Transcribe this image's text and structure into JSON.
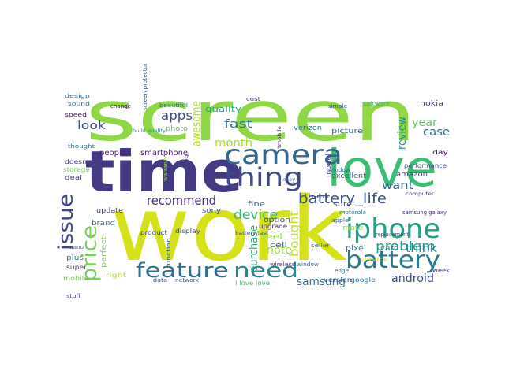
{
  "word_cloud": {
    "words": [
      {
        "text": "screen",
        "color": "#8fd744"
      },
      {
        "text": "work",
        "color": "#d5e21a"
      },
      {
        "text": "time",
        "color": "#443983"
      },
      {
        "text": "love",
        "color": "#3dbc74"
      },
      {
        "text": "camera",
        "color": "#31688e"
      },
      {
        "text": "iphone",
        "color": "#20a386"
      },
      {
        "text": "thing",
        "color": "#3f4889"
      },
      {
        "text": "battery",
        "color": "#2a788e"
      },
      {
        "text": "feature",
        "color": "#2d708e"
      },
      {
        "text": "need",
        "color": "#26828e"
      },
      {
        "text": "issue",
        "color": "#404688"
      },
      {
        "text": "price",
        "color": "#75d054"
      },
      {
        "text": "battery_life",
        "color": "#3b528b"
      },
      {
        "text": "recommend",
        "color": "#472d7b"
      },
      {
        "text": "apps",
        "color": "#3f4788"
      },
      {
        "text": "fast",
        "color": "#2c728e"
      },
      {
        "text": "month",
        "color": "#a8db34"
      },
      {
        "text": "device",
        "color": "#35b779"
      },
      {
        "text": "awesome",
        "color": "#b8de29"
      },
      {
        "text": "problem",
        "color": "#1f9e89"
      },
      {
        "text": "android",
        "color": "#3e4a89"
      },
      {
        "text": "review",
        "color": "#21918c"
      },
      {
        "text": "year",
        "color": "#5ec962"
      },
      {
        "text": "want",
        "color": "#31688e"
      },
      {
        "text": "case",
        "color": "#2e6e8e"
      },
      {
        "text": "think",
        "color": "#25848e"
      },
      {
        "text": "bought",
        "color": "#c8e020"
      },
      {
        "text": "look",
        "color": "#3b528b"
      },
      {
        "text": "samsung",
        "color": "#2c728e"
      },
      {
        "text": "purchase",
        "color": "#22a884"
      },
      {
        "text": "note",
        "color": "#a5db36"
      },
      {
        "text": "quality",
        "color": "#22a785"
      },
      {
        "text": "people",
        "color": "#482475"
      },
      {
        "text": "smartphone",
        "color": "#481f70"
      },
      {
        "text": "update",
        "color": "#433e85"
      },
      {
        "text": "brand",
        "color": "#2d708e"
      },
      {
        "text": "perfect",
        "color": "#86d549"
      },
      {
        "text": "excellent",
        "color": "#34618d"
      },
      {
        "text": "amazon",
        "color": "#404588"
      },
      {
        "text": "nokia",
        "color": "#3e4989"
      },
      {
        "text": "picture",
        "color": "#34608d"
      },
      {
        "text": "card",
        "color": "#2a768e"
      },
      {
        "text": "feel",
        "color": "#95d840"
      },
      {
        "text": "fine",
        "color": "#2f6c8e"
      },
      {
        "text": "thank",
        "color": "#414487"
      },
      {
        "text": "sure",
        "color": "#3a548c"
      },
      {
        "text": "cell",
        "color": "#38598c"
      },
      {
        "text": "model",
        "color": "#443a83"
      },
      {
        "text": "sony",
        "color": "#3a548c"
      },
      {
        "text": "option",
        "color": "#3c4f8a"
      },
      {
        "text": "upgrade",
        "color": "#472a7a"
      },
      {
        "text": "pixel",
        "color": "#23898e"
      },
      {
        "text": "service",
        "color": "#d0e11c"
      },
      {
        "text": "google",
        "color": "#2c738e"
      },
      {
        "text": "version",
        "color": "#3e4c8a"
      },
      {
        "text": "day",
        "color": "#440154"
      },
      {
        "text": "performance",
        "color": "#3b528b"
      },
      {
        "text": "right",
        "color": "#b5de2b"
      },
      {
        "text": "plus",
        "color": "#27808e"
      },
      {
        "text": "super",
        "color": "#433d84"
      },
      {
        "text": "mobile",
        "color": "#7ad151"
      },
      {
        "text": "deal",
        "color": "#3e4a89"
      },
      {
        "text": "doesn",
        "color": "#443983"
      },
      {
        "text": "storage",
        "color": "#6ccd5a"
      },
      {
        "text": "design",
        "color": "#31688e"
      },
      {
        "text": "sound",
        "color": "#2e6d8e"
      },
      {
        "text": "speed",
        "color": "#471365"
      },
      {
        "text": "thought",
        "color": "#2c738e"
      },
      {
        "text": "verizon",
        "color": "#2c728e"
      },
      {
        "text": "photo",
        "color": "#52c569"
      },
      {
        "text": "display",
        "color": "#3b528b"
      },
      {
        "text": "product",
        "color": "#404588"
      },
      {
        "text": "screen protector",
        "color": "#3a548c"
      },
      {
        "text": "edge",
        "color": "#31688e"
      },
      {
        "text": "week",
        "color": "#482878"
      },
      {
        "text": "motorola",
        "color": "#2a778e"
      },
      {
        "text": "samsung galaxy",
        "color": "#472c7a"
      },
      {
        "text": "moto",
        "color": "#a0da39"
      },
      {
        "text": "wireless",
        "color": "#482979"
      },
      {
        "text": "window",
        "color": "#355f8d"
      },
      {
        "text": "function",
        "color": "#31678e"
      },
      {
        "text": "simple",
        "color": "#3e4989"
      },
      {
        "text": "software",
        "color": "#34b679"
      },
      {
        "text": "beautiful",
        "color": "#2c728e"
      },
      {
        "text": "change",
        "color": "#471164"
      },
      {
        "text": "cost",
        "color": "#472a7a"
      },
      {
        "text": "seller",
        "color": "#2d708e"
      },
      {
        "text": "network",
        "color": "#38598c"
      },
      {
        "text": "data",
        "color": "#3d4d8a"
      },
      {
        "text": "apple",
        "color": "#31688e"
      },
      {
        "text": "replacement",
        "color": "#3e4a89"
      },
      {
        "text": "window",
        "color": "#2f6b8e"
      },
      {
        "text": "i love love",
        "color": "#3dbc74"
      },
      {
        "text": "nano",
        "color": "#3b528b"
      },
      {
        "text": "stuff",
        "color": "#3f4889"
      },
      {
        "text": "build quality",
        "color": "#21918c"
      },
      {
        "text": "setting",
        "color": "#404588"
      },
      {
        "text": "tmobile",
        "color": "#482576"
      },
      {
        "text": "battery last",
        "color": "#3a548c"
      },
      {
        "text": "computer",
        "color": "#46337f"
      },
      {
        "text": "warranty",
        "color": "#95d840"
      },
      {
        "text": "money",
        "color": "#2d708e"
      },
      {
        "text": "buy",
        "color": "#c2df23"
      }
    ]
  }
}
